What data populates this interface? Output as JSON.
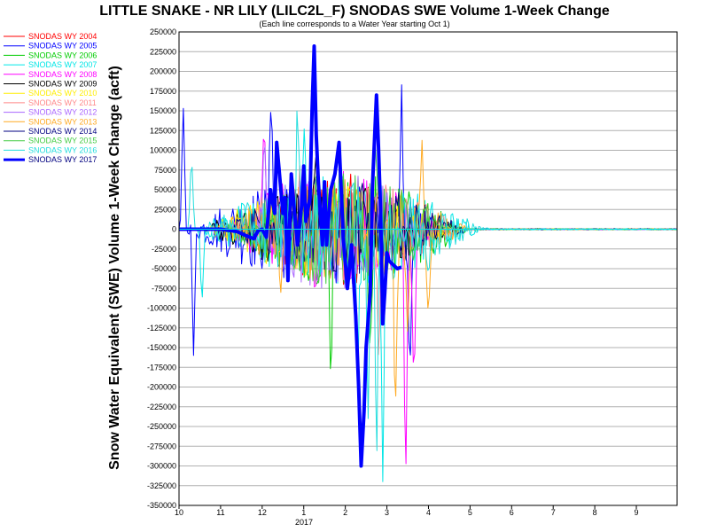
{
  "chart_data": {
    "type": "line",
    "title": "LITTLE SNAKE - NR LILY (LILC2L_F) SNODAS SWE Volume 1-Week Change",
    "subtitle": "(Each line corresponds to a Water Year starting Oct 1)",
    "ylabel": "Snow Water Equivalent (SWE) Volume 1-Week Change (acft)",
    "xlabel": "",
    "ylim": [
      -350000,
      250000
    ],
    "yticks": [
      250000,
      225000,
      200000,
      175000,
      150000,
      125000,
      100000,
      75000,
      50000,
      25000,
      0,
      -25000,
      -50000,
      -75000,
      -100000,
      -125000,
      -150000,
      -175000,
      -200000,
      -225000,
      -250000,
      -275000,
      -300000,
      -325000,
      -350000
    ],
    "xlim": [
      10,
      9.98
    ],
    "xticks": [
      "10",
      "11",
      "12",
      "1",
      "2",
      "3",
      "4",
      "5",
      "6",
      "7",
      "8",
      "9"
    ],
    "x_year_label": "2017",
    "grid": true,
    "legend_position": "left",
    "series": [
      {
        "name": "SNODAS WY 2004",
        "color": "#ff0000",
        "width": 1
      },
      {
        "name": "SNODAS WY 2005",
        "color": "#0000ff",
        "width": 1
      },
      {
        "name": "SNODAS WY 2006",
        "color": "#00cc00",
        "width": 1
      },
      {
        "name": "SNODAS WY 2007",
        "color": "#00e6e6",
        "width": 1
      },
      {
        "name": "SNODAS WY 2008",
        "color": "#ff00ff",
        "width": 1
      },
      {
        "name": "SNODAS WY 2009",
        "color": "#000000",
        "width": 1
      },
      {
        "name": "SNODAS WY 2010",
        "color": "#ffee00",
        "width": 1
      },
      {
        "name": "SNODAS WY 2011",
        "color": "#ff8888",
        "width": 1
      },
      {
        "name": "SNODAS WY 2012",
        "color": "#aa66ff",
        "width": 1
      },
      {
        "name": "SNODAS WY 2013",
        "color": "#ffaa22",
        "width": 1
      },
      {
        "name": "SNODAS WY 2014",
        "color": "#000080",
        "width": 1
      },
      {
        "name": "SNODAS WY 2015",
        "color": "#44cc44",
        "width": 1
      },
      {
        "name": "SNODAS WY 2016",
        "color": "#22dddd",
        "width": 1
      },
      {
        "name": "SNODAS WY 2017",
        "color": "#0000ff",
        "width": 4,
        "points": [
          [
            10.0,
            0
          ],
          [
            10.5,
            0
          ],
          [
            11.0,
            0
          ],
          [
            11.4,
            -3000
          ],
          [
            11.6,
            -8000
          ],
          [
            11.8,
            -12000
          ],
          [
            11.9,
            -2000
          ],
          [
            12.0,
            0
          ],
          [
            12.1,
            -10000
          ],
          [
            12.2,
            50000
          ],
          [
            12.3,
            20000
          ],
          [
            12.35,
            110000
          ],
          [
            12.45,
            50000
          ],
          [
            12.5,
            20000
          ],
          [
            12.55,
            40000
          ],
          [
            12.62,
            -65000
          ],
          [
            12.7,
            70000
          ],
          [
            12.78,
            20000
          ],
          [
            12.85,
            -20000
          ],
          [
            12.95,
            30000
          ],
          [
            13.0,
            80000
          ],
          [
            13.05,
            10000
          ],
          [
            13.15,
            40000
          ],
          [
            13.2,
            150000
          ],
          [
            13.25,
            232000
          ],
          [
            13.3,
            120000
          ],
          [
            13.35,
            60000
          ],
          [
            13.45,
            -20000
          ],
          [
            13.5,
            60000
          ],
          [
            13.55,
            -20000
          ],
          [
            13.65,
            50000
          ],
          [
            13.75,
            70000
          ],
          [
            13.85,
            110000
          ],
          [
            13.95,
            -10000
          ],
          [
            14.05,
            -75000
          ],
          [
            14.15,
            -20000
          ],
          [
            14.25,
            -110000
          ],
          [
            14.32,
            -200000
          ],
          [
            14.38,
            -300000
          ],
          [
            14.45,
            -230000
          ],
          [
            14.5,
            -150000
          ],
          [
            14.6,
            -80000
          ],
          [
            14.65,
            50000
          ],
          [
            14.75,
            170000
          ],
          [
            14.8,
            100000
          ],
          [
            14.85,
            20000
          ],
          [
            14.9,
            -120000
          ],
          [
            14.95,
            -80000
          ],
          [
            15.0,
            -30000
          ],
          [
            15.05,
            -40000
          ],
          [
            15.15,
            -45000
          ],
          [
            15.25,
            -50000
          ],
          [
            15.35,
            -48000
          ]
        ]
      }
    ]
  }
}
